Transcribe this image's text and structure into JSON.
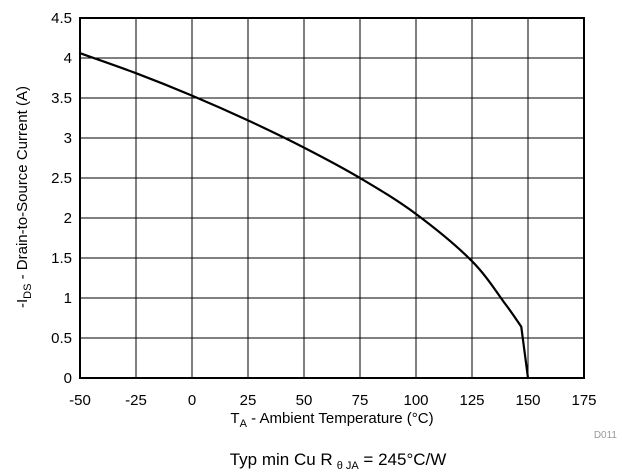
{
  "chart_data": {
    "type": "line",
    "title": "",
    "xlabel_main": "T",
    "xlabel_sub": "A",
    "xlabel_rest": " - Ambient Temperature (°C)",
    "ylabel_pre": "-I",
    "ylabel_sub": "DS",
    "ylabel_rest": " - Drain-to-Source Current (A)",
    "xlim": [
      -50,
      175
    ],
    "ylim": [
      0,
      4.5
    ],
    "x_ticks": [
      -50,
      -25,
      0,
      25,
      50,
      75,
      100,
      125,
      150,
      175
    ],
    "y_ticks": [
      0,
      0.5,
      1,
      1.5,
      2,
      2.5,
      3,
      3.5,
      4,
      4.5
    ],
    "x_tick_labels": [
      "-50",
      "-25",
      "0",
      "25",
      "50",
      "75",
      "100",
      "125",
      "150",
      "175"
    ],
    "y_tick_labels": [
      "0",
      "0.5",
      "1",
      "1.5",
      "2",
      "2.5",
      "3",
      "3.5",
      "4",
      "4.5"
    ],
    "grid": true,
    "series": [
      {
        "x": [
          -50,
          -25,
          0,
          25,
          50,
          75,
          100,
          125,
          140,
          147,
          150
        ],
        "y": [
          4.06,
          3.81,
          3.53,
          3.22,
          2.88,
          2.5,
          2.05,
          1.46,
          0.92,
          0.64,
          0
        ]
      }
    ],
    "figure_id": "D011",
    "note_pre": "Typ min Cu R",
    "note_sub": "θ JA",
    "note_post": " = 245°C/W"
  }
}
